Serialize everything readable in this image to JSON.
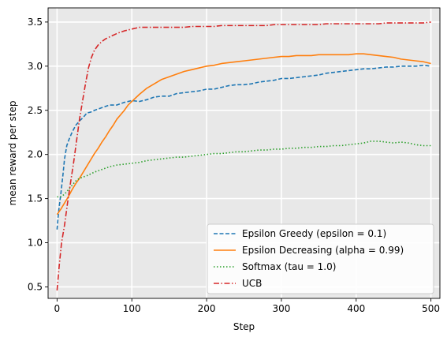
{
  "chart_data": {
    "type": "line",
    "title": "",
    "xlabel": "Step",
    "ylabel": "mean reward per step",
    "xlim": [
      -12,
      512
    ],
    "ylim": [
      0.37,
      3.66
    ],
    "xticks": [
      0,
      100,
      200,
      300,
      400,
      500
    ],
    "yticks": [
      0.5,
      1.0,
      1.5,
      2.0,
      2.5,
      3.0,
      3.5
    ],
    "xtick_labels": [
      "0",
      "100",
      "200",
      "300",
      "400",
      "500"
    ],
    "ytick_labels": [
      "0.5",
      "1.0",
      "1.5",
      "2.0",
      "2.5",
      "3.0",
      "3.5"
    ],
    "grid": true,
    "background": "#e8e8e8",
    "legend_position": "lower-right",
    "series": [
      {
        "name": "Epsilon Greedy (epsilon = 0.1)",
        "color": "#1f77b4",
        "dash": "dashed",
        "points": [
          [
            0,
            1.15
          ],
          [
            2,
            1.35
          ],
          [
            5,
            1.55
          ],
          [
            8,
            1.78
          ],
          [
            10,
            1.95
          ],
          [
            13,
            2.1
          ],
          [
            16,
            2.17
          ],
          [
            20,
            2.25
          ],
          [
            25,
            2.33
          ],
          [
            30,
            2.38
          ],
          [
            35,
            2.42
          ],
          [
            40,
            2.47
          ],
          [
            45,
            2.48
          ],
          [
            50,
            2.5
          ],
          [
            60,
            2.53
          ],
          [
            70,
            2.56
          ],
          [
            80,
            2.56
          ],
          [
            90,
            2.59
          ],
          [
            100,
            2.61
          ],
          [
            110,
            2.6
          ],
          [
            120,
            2.62
          ],
          [
            130,
            2.65
          ],
          [
            140,
            2.66
          ],
          [
            150,
            2.66
          ],
          [
            160,
            2.69
          ],
          [
            170,
            2.7
          ],
          [
            180,
            2.71
          ],
          [
            190,
            2.72
          ],
          [
            200,
            2.74
          ],
          [
            210,
            2.74
          ],
          [
            220,
            2.76
          ],
          [
            230,
            2.78
          ],
          [
            240,
            2.79
          ],
          [
            250,
            2.79
          ],
          [
            260,
            2.8
          ],
          [
            270,
            2.82
          ],
          [
            280,
            2.83
          ],
          [
            290,
            2.84
          ],
          [
            300,
            2.86
          ],
          [
            310,
            2.86
          ],
          [
            320,
            2.87
          ],
          [
            330,
            2.88
          ],
          [
            340,
            2.89
          ],
          [
            350,
            2.9
          ],
          [
            360,
            2.92
          ],
          [
            370,
            2.93
          ],
          [
            380,
            2.94
          ],
          [
            390,
            2.95
          ],
          [
            400,
            2.96
          ],
          [
            410,
            2.97
          ],
          [
            420,
            2.97
          ],
          [
            430,
            2.98
          ],
          [
            440,
            2.99
          ],
          [
            450,
            2.99
          ],
          [
            460,
            3.0
          ],
          [
            470,
            3.0
          ],
          [
            480,
            3.0
          ],
          [
            490,
            3.01
          ],
          [
            500,
            3.0
          ]
        ]
      },
      {
        "name": "Epsilon Decreasing (alpha = 0.99)",
        "color": "#ff7f0e",
        "dash": "solid",
        "points": [
          [
            0,
            1.32
          ],
          [
            5,
            1.38
          ],
          [
            10,
            1.45
          ],
          [
            15,
            1.52
          ],
          [
            20,
            1.6
          ],
          [
            25,
            1.67
          ],
          [
            30,
            1.73
          ],
          [
            35,
            1.8
          ],
          [
            40,
            1.87
          ],
          [
            45,
            1.94
          ],
          [
            50,
            2.01
          ],
          [
            55,
            2.07
          ],
          [
            60,
            2.14
          ],
          [
            65,
            2.2
          ],
          [
            70,
            2.27
          ],
          [
            75,
            2.33
          ],
          [
            80,
            2.4
          ],
          [
            85,
            2.45
          ],
          [
            90,
            2.5
          ],
          [
            95,
            2.56
          ],
          [
            100,
            2.6
          ],
          [
            110,
            2.68
          ],
          [
            120,
            2.75
          ],
          [
            130,
            2.8
          ],
          [
            140,
            2.85
          ],
          [
            150,
            2.88
          ],
          [
            160,
            2.91
          ],
          [
            170,
            2.94
          ],
          [
            180,
            2.96
          ],
          [
            190,
            2.98
          ],
          [
            200,
            3.0
          ],
          [
            210,
            3.01
          ],
          [
            220,
            3.03
          ],
          [
            230,
            3.04
          ],
          [
            240,
            3.05
          ],
          [
            250,
            3.06
          ],
          [
            260,
            3.07
          ],
          [
            270,
            3.08
          ],
          [
            280,
            3.09
          ],
          [
            290,
            3.1
          ],
          [
            300,
            3.11
          ],
          [
            310,
            3.11
          ],
          [
            320,
            3.12
          ],
          [
            330,
            3.12
          ],
          [
            340,
            3.12
          ],
          [
            350,
            3.13
          ],
          [
            360,
            3.13
          ],
          [
            370,
            3.13
          ],
          [
            380,
            3.13
          ],
          [
            390,
            3.13
          ],
          [
            400,
            3.14
          ],
          [
            410,
            3.14
          ],
          [
            420,
            3.13
          ],
          [
            430,
            3.12
          ],
          [
            440,
            3.11
          ],
          [
            450,
            3.1
          ],
          [
            460,
            3.08
          ],
          [
            470,
            3.07
          ],
          [
            480,
            3.06
          ],
          [
            490,
            3.05
          ],
          [
            500,
            3.03
          ]
        ]
      },
      {
        "name": "Softmax (tau = 1.0)",
        "color": "#2ca02c",
        "dash": "dotted",
        "points": [
          [
            0,
            1.52
          ],
          [
            5,
            1.52
          ],
          [
            10,
            1.55
          ],
          [
            15,
            1.6
          ],
          [
            20,
            1.65
          ],
          [
            25,
            1.7
          ],
          [
            30,
            1.73
          ],
          [
            40,
            1.76
          ],
          [
            50,
            1.8
          ],
          [
            60,
            1.83
          ],
          [
            70,
            1.86
          ],
          [
            80,
            1.88
          ],
          [
            90,
            1.89
          ],
          [
            100,
            1.9
          ],
          [
            110,
            1.91
          ],
          [
            120,
            1.93
          ],
          [
            130,
            1.94
          ],
          [
            140,
            1.95
          ],
          [
            150,
            1.96
          ],
          [
            160,
            1.97
          ],
          [
            170,
            1.97
          ],
          [
            180,
            1.98
          ],
          [
            190,
            1.99
          ],
          [
            200,
            2.0
          ],
          [
            210,
            2.01
          ],
          [
            220,
            2.01
          ],
          [
            230,
            2.02
          ],
          [
            240,
            2.03
          ],
          [
            250,
            2.03
          ],
          [
            260,
            2.04
          ],
          [
            270,
            2.05
          ],
          [
            280,
            2.05
          ],
          [
            290,
            2.06
          ],
          [
            300,
            2.06
          ],
          [
            310,
            2.07
          ],
          [
            320,
            2.07
          ],
          [
            330,
            2.08
          ],
          [
            340,
            2.08
          ],
          [
            350,
            2.09
          ],
          [
            360,
            2.09
          ],
          [
            370,
            2.1
          ],
          [
            380,
            2.1
          ],
          [
            390,
            2.11
          ],
          [
            400,
            2.12
          ],
          [
            410,
            2.13
          ],
          [
            420,
            2.15
          ],
          [
            430,
            2.15
          ],
          [
            440,
            2.14
          ],
          [
            450,
            2.13
          ],
          [
            460,
            2.14
          ],
          [
            470,
            2.13
          ],
          [
            480,
            2.11
          ],
          [
            490,
            2.1
          ],
          [
            500,
            2.1
          ]
        ]
      },
      {
        "name": "UCB",
        "color": "#d62728",
        "dash": "dashdot",
        "points": [
          [
            0,
            0.46
          ],
          [
            3,
            0.75
          ],
          [
            6,
            1.0
          ],
          [
            10,
            1.2
          ],
          [
            14,
            1.45
          ],
          [
            18,
            1.68
          ],
          [
            22,
            1.9
          ],
          [
            26,
            2.15
          ],
          [
            30,
            2.4
          ],
          [
            34,
            2.6
          ],
          [
            38,
            2.8
          ],
          [
            42,
            2.98
          ],
          [
            46,
            3.1
          ],
          [
            50,
            3.18
          ],
          [
            55,
            3.24
          ],
          [
            60,
            3.28
          ],
          [
            65,
            3.31
          ],
          [
            70,
            3.33
          ],
          [
            80,
            3.37
          ],
          [
            90,
            3.4
          ],
          [
            100,
            3.42
          ],
          [
            110,
            3.44
          ],
          [
            120,
            3.44
          ],
          [
            130,
            3.44
          ],
          [
            140,
            3.44
          ],
          [
            150,
            3.44
          ],
          [
            160,
            3.44
          ],
          [
            170,
            3.44
          ],
          [
            180,
            3.45
          ],
          [
            190,
            3.45
          ],
          [
            200,
            3.45
          ],
          [
            210,
            3.45
          ],
          [
            220,
            3.46
          ],
          [
            230,
            3.46
          ],
          [
            240,
            3.46
          ],
          [
            250,
            3.46
          ],
          [
            260,
            3.46
          ],
          [
            270,
            3.46
          ],
          [
            280,
            3.46
          ],
          [
            290,
            3.47
          ],
          [
            300,
            3.47
          ],
          [
            310,
            3.47
          ],
          [
            320,
            3.47
          ],
          [
            330,
            3.47
          ],
          [
            340,
            3.47
          ],
          [
            350,
            3.47
          ],
          [
            360,
            3.48
          ],
          [
            370,
            3.48
          ],
          [
            380,
            3.48
          ],
          [
            390,
            3.48
          ],
          [
            400,
            3.48
          ],
          [
            410,
            3.48
          ],
          [
            420,
            3.48
          ],
          [
            430,
            3.48
          ],
          [
            440,
            3.49
          ],
          [
            450,
            3.49
          ],
          [
            460,
            3.49
          ],
          [
            470,
            3.49
          ],
          [
            480,
            3.49
          ],
          [
            490,
            3.49
          ],
          [
            500,
            3.5
          ]
        ]
      }
    ]
  }
}
